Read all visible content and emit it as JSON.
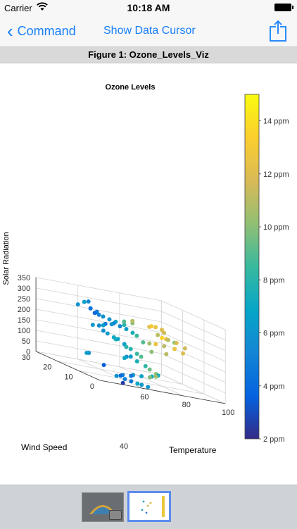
{
  "status": {
    "carrier": "Carrier",
    "time": "10:18 AM"
  },
  "nav": {
    "back_label": "Command",
    "cursor_label": "Show Data Cursor"
  },
  "figure_title": "Figure 1: Ozone_Levels_Viz",
  "chart_data": {
    "type": "scatter",
    "title": "Ozone Levels",
    "xlabel": "Temperature",
    "ylabel": "Wind Speed",
    "zlabel": "Solar Radiation",
    "xticks": [
      60,
      80,
      100
    ],
    "xlim": [
      40,
      100
    ],
    "yticks": [
      0,
      10,
      20,
      30
    ],
    "ylim": [
      0,
      30
    ],
    "zticks": [
      0,
      50,
      100,
      150,
      200,
      250,
      300,
      350
    ],
    "zlim": [
      0,
      350
    ],
    "grid": true,
    "colormap": "parula",
    "colorbar": {
      "ticks": [
        "2 ppm",
        "4 ppm",
        "6 ppm",
        "8 ppm",
        "10 ppm",
        "12 ppm",
        "14 ppm"
      ],
      "range": [
        2,
        15
      ]
    },
    "points": [
      [
        58,
        25,
        290,
        6.5
      ],
      [
        60,
        25,
        296,
        5.5
      ],
      [
        56,
        26,
        270,
        6.0
      ],
      [
        60,
        24,
        268,
        5.0
      ],
      [
        61,
        25,
        265,
        4.5
      ],
      [
        62,
        23,
        260,
        4.6
      ],
      [
        63,
        24,
        255,
        4.8
      ],
      [
        64,
        24,
        245,
        5.2
      ],
      [
        62,
        24,
        250,
        4.0
      ],
      [
        66,
        24,
        240,
        5.8
      ],
      [
        68,
        23,
        235,
        6.0
      ],
      [
        70,
        22,
        232,
        7.0
      ],
      [
        72,
        20,
        230,
        8.0
      ],
      [
        74,
        22,
        240,
        9.0
      ],
      [
        76,
        20,
        245,
        10.0
      ],
      [
        78,
        22,
        250,
        11.0
      ],
      [
        82,
        18,
        248,
        12.0
      ],
      [
        84,
        19,
        250,
        13.0
      ],
      [
        85,
        18,
        252,
        12.5
      ],
      [
        88,
        18,
        245,
        12.0
      ],
      [
        88,
        17,
        235,
        11.5
      ],
      [
        84,
        16,
        222,
        11.0
      ],
      [
        86,
        16,
        212,
        13.5
      ],
      [
        88,
        16,
        210,
        12.5
      ],
      [
        90,
        17,
        205,
        11.0
      ],
      [
        92,
        16,
        200,
        10.0
      ],
      [
        94,
        17,
        198,
        12.0
      ],
      [
        96,
        15,
        186,
        11.5
      ],
      [
        92,
        12,
        168,
        12.0
      ],
      [
        90,
        14,
        176,
        12.5
      ],
      [
        86,
        15,
        178,
        11.0
      ],
      [
        82,
        15,
        180,
        12.5
      ],
      [
        80,
        16,
        175,
        10.5
      ],
      [
        78,
        17,
        172,
        9.0
      ],
      [
        76,
        18,
        195,
        8.5
      ],
      [
        74,
        18,
        205,
        7.5
      ],
      [
        72,
        19,
        215,
        6.5
      ],
      [
        70,
        20,
        220,
        5.5
      ],
      [
        68,
        21,
        225,
        5.0
      ],
      [
        66,
        20,
        222,
        6.0
      ],
      [
        64,
        21,
        215,
        4.5
      ],
      [
        62,
        20,
        210,
        6.5
      ],
      [
        60,
        20,
        205,
        5.5
      ],
      [
        58,
        21,
        200,
        6.2
      ],
      [
        60,
        18,
        190,
        5.8
      ],
      [
        62,
        18,
        180,
        6.3
      ],
      [
        64,
        17,
        170,
        7.0
      ],
      [
        66,
        18,
        160,
        7.6
      ],
      [
        68,
        16,
        150,
        6.5
      ],
      [
        70,
        15,
        135,
        8.0
      ],
      [
        72,
        14,
        120,
        8.5
      ],
      [
        74,
        14,
        110,
        9.0
      ],
      [
        68,
        13,
        105,
        6.5
      ],
      [
        66,
        13,
        100,
        6.0
      ],
      [
        64,
        12,
        95,
        7.0
      ],
      [
        70,
        12,
        90,
        7.5
      ],
      [
        72,
        10,
        80,
        8.2
      ],
      [
        74,
        10,
        68,
        9.5
      ],
      [
        76,
        9,
        55,
        10.0
      ],
      [
        76,
        8,
        52,
        7.0
      ],
      [
        74,
        7,
        48,
        10.5
      ],
      [
        72,
        7,
        45,
        7.5
      ],
      [
        70,
        6,
        42,
        9.8
      ],
      [
        66,
        6,
        40,
        6.5
      ],
      [
        62,
        6,
        38,
        6.2
      ],
      [
        60,
        5,
        35,
        4.5
      ],
      [
        56,
        5,
        32,
        5.0
      ],
      [
        54,
        4,
        30,
        4.0
      ],
      [
        52,
        4,
        25,
        6.0
      ],
      [
        55,
        3,
        20,
        5.0
      ],
      [
        58,
        3,
        15,
        4.6
      ],
      [
        60,
        2,
        12,
        7.0
      ],
      [
        62,
        2,
        10,
        6.4
      ],
      [
        64,
        1,
        8,
        6.0
      ],
      [
        52,
        1,
        5,
        2.5
      ],
      [
        48,
        6,
        60,
        3.5
      ],
      [
        50,
        15,
        80,
        6.0
      ],
      [
        52,
        18,
        70,
        6.4
      ],
      [
        70,
        21,
        155,
        7.0
      ],
      [
        72,
        19,
        130,
        8.0
      ],
      [
        80,
        15,
        140,
        10.0
      ],
      [
        84,
        12,
        150,
        11.0
      ]
    ]
  }
}
